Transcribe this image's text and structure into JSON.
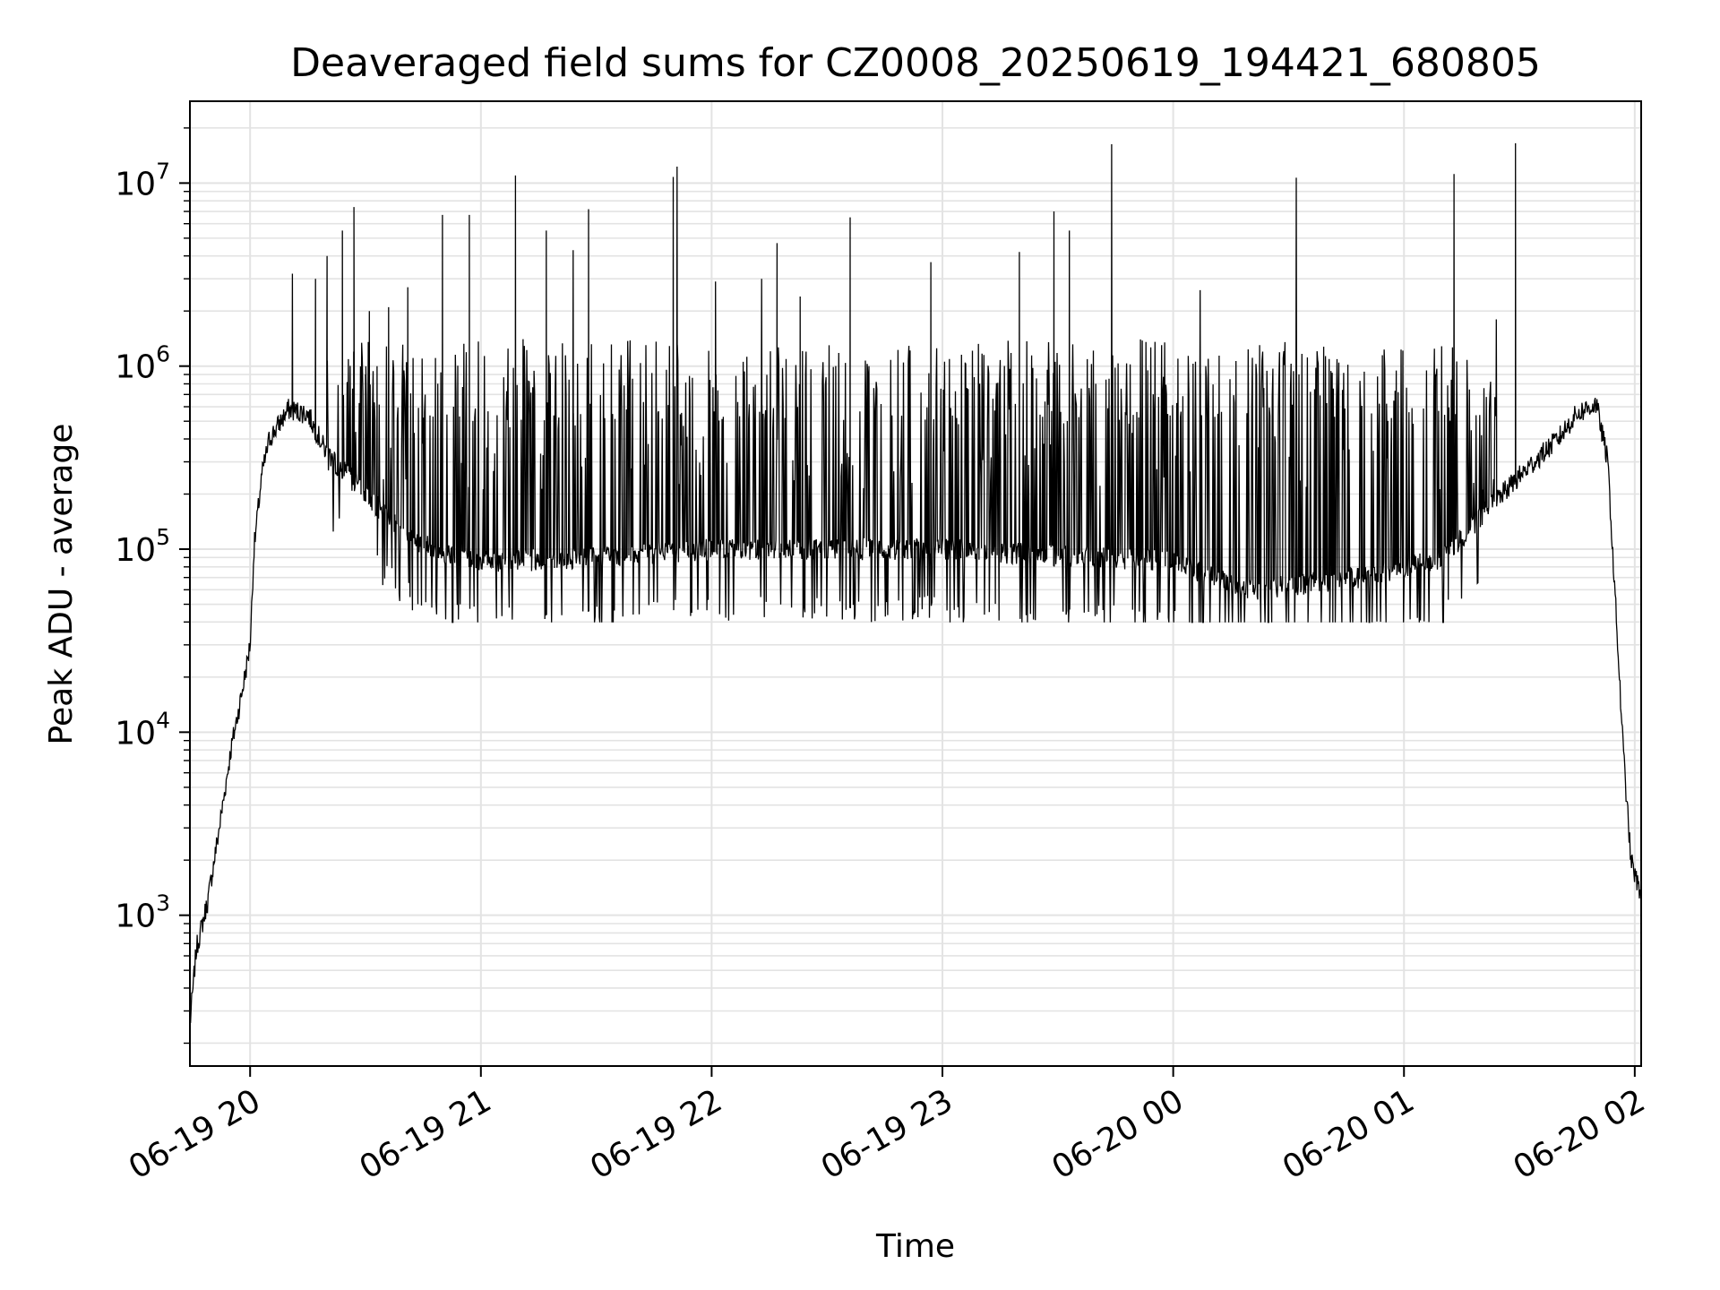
{
  "chart_data": {
    "type": "line",
    "title": "Deaveraged field sums for CZ0008_20250619_194421_680805",
    "xlabel": "Time",
    "ylabel": "Peak ADU - average",
    "yscale": "log",
    "ylim": [
      150,
      28000000
    ],
    "xlim": [
      "2025-06-19 19:44:21",
      "2025-06-20 02:01:40"
    ],
    "grid": true,
    "line_color": "#000000",
    "x_ticks": [
      "06-19 20",
      "06-19 21",
      "06-19 22",
      "06-19 23",
      "06-20 00",
      "06-20 01",
      "06-20 02"
    ],
    "y_ticks": [
      {
        "base": "10",
        "exp": "3",
        "value": 1000
      },
      {
        "base": "10",
        "exp": "4",
        "value": 10000
      },
      {
        "base": "10",
        "exp": "5",
        "value": 100000
      },
      {
        "base": "10",
        "exp": "6",
        "value": 1000000
      },
      {
        "base": "10",
        "exp": "7",
        "value": 10000000
      }
    ],
    "baseline": [
      {
        "t": "2025-06-19 19:44:21",
        "v": 250
      },
      {
        "t": "2025-06-19 19:46:00",
        "v": 650
      },
      {
        "t": "2025-06-19 19:49:00",
        "v": 1200
      },
      {
        "t": "2025-06-19 19:52:00",
        "v": 3000
      },
      {
        "t": "2025-06-19 19:55:00",
        "v": 8000
      },
      {
        "t": "2025-06-19 19:58:00",
        "v": 17000
      },
      {
        "t": "2025-06-19 20:00:00",
        "v": 30000
      },
      {
        "t": "2025-06-19 20:01:00",
        "v": 100000
      },
      {
        "t": "2025-06-19 20:03:00",
        "v": 250000
      },
      {
        "t": "2025-06-19 20:05:00",
        "v": 400000
      },
      {
        "t": "2025-06-19 20:10:00",
        "v": 580000
      },
      {
        "t": "2025-06-19 20:15:00",
        "v": 550000
      },
      {
        "t": "2025-06-19 20:20:00",
        "v": 330000
      },
      {
        "t": "2025-06-19 20:30:00",
        "v": 200000
      },
      {
        "t": "2025-06-19 20:40:00",
        "v": 120000
      },
      {
        "t": "2025-06-19 20:50:00",
        "v": 95000
      },
      {
        "t": "2025-06-19 21:00:00",
        "v": 85000
      },
      {
        "t": "2025-06-19 21:30:00",
        "v": 90000
      },
      {
        "t": "2025-06-19 22:00:00",
        "v": 100000
      },
      {
        "t": "2025-06-19 23:00:00",
        "v": 100000
      },
      {
        "t": "2025-06-20 00:00:00",
        "v": 85000
      },
      {
        "t": "2025-06-20 00:20:00",
        "v": 60000
      },
      {
        "t": "2025-06-20 00:50:00",
        "v": 70000
      },
      {
        "t": "2025-06-20 01:10:00",
        "v": 90000
      },
      {
        "t": "2025-06-20 01:20:00",
        "v": 150000
      },
      {
        "t": "2025-06-20 01:30:00",
        "v": 250000
      },
      {
        "t": "2025-06-20 01:40:00",
        "v": 400000
      },
      {
        "t": "2025-06-20 01:45:00",
        "v": 550000
      },
      {
        "t": "2025-06-20 01:50:00",
        "v": 620000
      },
      {
        "t": "2025-06-20 01:53:00",
        "v": 300000
      },
      {
        "t": "2025-06-20 01:55:00",
        "v": 50000
      },
      {
        "t": "2025-06-20 01:57:00",
        "v": 8000
      },
      {
        "t": "2025-06-20 01:59:00",
        "v": 2000
      },
      {
        "t": "2025-06-20 02:01:00",
        "v": 1400
      }
    ],
    "spikes": [
      {
        "t": "2025-06-19 20:11:00",
        "v": 3200000
      },
      {
        "t": "2025-06-19 20:17:00",
        "v": 3000000
      },
      {
        "t": "2025-06-19 20:20:00",
        "v": 4000000
      },
      {
        "t": "2025-06-19 20:24:00",
        "v": 5500000
      },
      {
        "t": "2025-06-19 20:27:00",
        "v": 1200000
      },
      {
        "t": "2025-06-19 20:30:00",
        "v": 900000
      },
      {
        "t": "2025-06-19 20:33:00",
        "v": 1000000
      },
      {
        "t": "2025-06-19 20:27:00",
        "v": 7400000
      },
      {
        "t": "2025-06-19 20:31:00",
        "v": 2000000
      },
      {
        "t": "2025-06-19 20:36:00",
        "v": 2100000
      },
      {
        "t": "2025-06-19 20:41:00",
        "v": 2700000
      },
      {
        "t": "2025-06-19 20:50:00",
        "v": 6700000
      },
      {
        "t": "2025-06-19 20:57:00",
        "v": 6700000
      },
      {
        "t": "2025-06-19 21:09:00",
        "v": 11000000
      },
      {
        "t": "2025-06-19 21:17:00",
        "v": 5500000
      },
      {
        "t": "2025-06-19 21:24:00",
        "v": 4300000
      },
      {
        "t": "2025-06-19 21:28:00",
        "v": 7200000
      },
      {
        "t": "2025-06-19 21:50:00",
        "v": 10800000
      },
      {
        "t": "2025-06-19 21:51:00",
        "v": 12300000
      },
      {
        "t": "2025-06-19 22:01:00",
        "v": 2900000
      },
      {
        "t": "2025-06-19 22:13:00",
        "v": 3000000
      },
      {
        "t": "2025-06-19 22:17:00",
        "v": 4700000
      },
      {
        "t": "2025-06-19 22:23:00",
        "v": 2400000
      },
      {
        "t": "2025-06-19 22:36:00",
        "v": 6500000
      },
      {
        "t": "2025-06-19 22:57:00",
        "v": 3700000
      },
      {
        "t": "2025-06-19 23:20:00",
        "v": 4200000
      },
      {
        "t": "2025-06-19 23:29:00",
        "v": 7000000
      },
      {
        "t": "2025-06-19 23:33:00",
        "v": 5500000
      },
      {
        "t": "2025-06-19 23:44:00",
        "v": 16300000
      },
      {
        "t": "2025-06-20 00:07:00",
        "v": 2600000
      },
      {
        "t": "2025-06-20 00:32:00",
        "v": 10700000
      },
      {
        "t": "2025-06-20 01:13:00",
        "v": 11200000
      },
      {
        "t": "2025-06-20 01:24:00",
        "v": 1800000
      },
      {
        "t": "2025-06-20 01:29:00",
        "v": 16500000
      }
    ]
  }
}
